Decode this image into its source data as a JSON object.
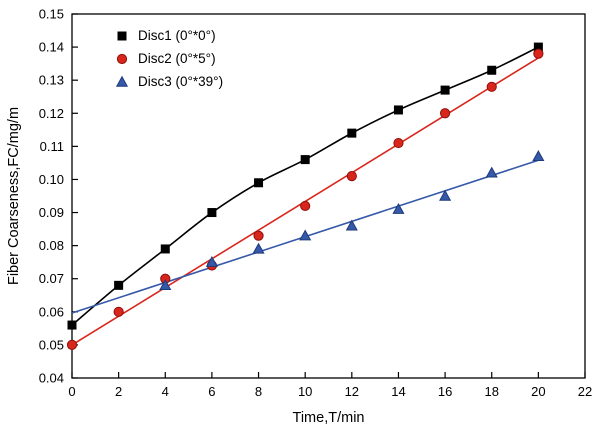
{
  "figure": {
    "background": "#ffffff",
    "frame_color": "#000000",
    "text_color": "#000000"
  },
  "chart_data": {
    "type": "scatter",
    "title": "",
    "xlabel": "Time,T/min",
    "ylabel": "Fiber Coarseness,FC/mg/m",
    "xlim": [
      0,
      22
    ],
    "ylim": [
      0.04,
      0.15
    ],
    "xticks": [
      0,
      2,
      4,
      6,
      8,
      10,
      12,
      14,
      16,
      18,
      20,
      22
    ],
    "yticks": [
      0.04,
      0.05,
      0.06,
      0.07,
      0.08,
      0.09,
      0.1,
      0.11,
      0.12,
      0.13,
      0.14,
      0.15
    ],
    "grid": false,
    "legend_position": "top-left-inside",
    "series": [
      {
        "name": "Disc1 (0°*0°)",
        "color": "#000000",
        "edge_color": "#000000",
        "marker": "square",
        "line": "smooth",
        "line_range": [
          0,
          20
        ],
        "x": [
          0,
          2,
          4,
          6,
          8,
          10,
          12,
          14,
          16,
          18,
          20
        ],
        "y": [
          0.056,
          0.068,
          0.079,
          0.09,
          0.099,
          0.106,
          0.114,
          0.121,
          0.127,
          0.133,
          0.14
        ]
      },
      {
        "name": "Disc2 (0°*5°)",
        "color": "#d9261c",
        "edge_color": "#8f0f0a",
        "marker": "circle",
        "line": "linear-fit",
        "line_range": [
          0,
          20
        ],
        "x": [
          0,
          2,
          4,
          6,
          8,
          10,
          12,
          14,
          16,
          18,
          20
        ],
        "y": [
          0.05,
          0.06,
          0.07,
          0.074,
          0.083,
          0.092,
          0.101,
          0.111,
          0.12,
          0.128,
          0.138
        ]
      },
      {
        "name": "Disc3 (0°*39°)",
        "color": "#3558a8",
        "edge_color": "#1d3a7a",
        "marker": "triangle",
        "line": "linear-fit",
        "line_range": [
          0,
          20
        ],
        "x": [
          4,
          6,
          8,
          10,
          12,
          14,
          16,
          18,
          20
        ],
        "y": [
          0.068,
          0.075,
          0.079,
          0.083,
          0.086,
          0.091,
          0.095,
          0.102,
          0.107
        ]
      }
    ]
  }
}
